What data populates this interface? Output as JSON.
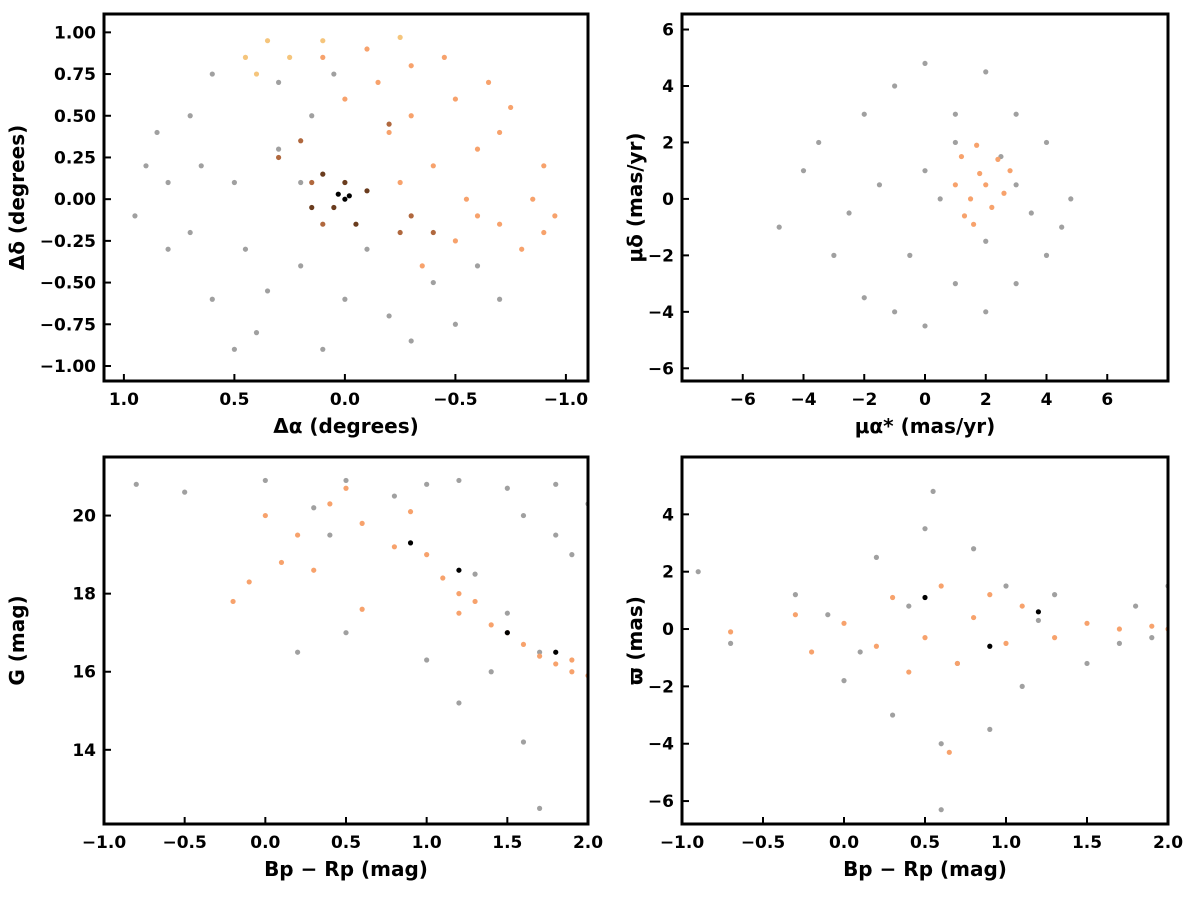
{
  "chart_data": [
    {
      "type": "scatter",
      "xlabel": "Δα (degrees)",
      "ylabel": "Δδ (degrees)",
      "xlim": [
        1.09,
        -1.1
      ],
      "ylim": [
        -1.09,
        1.11
      ],
      "xticks": [
        {
          "value": 1.0,
          "label": "1.0"
        },
        {
          "value": 0.5,
          "label": "0.5"
        },
        {
          "value": 0,
          "label": "0.0"
        },
        {
          "value": -0.5,
          "label": "−0.5"
        },
        {
          "value": -1.0,
          "label": "−1.0"
        }
      ],
      "yticks": [
        {
          "value": -1.0,
          "label": "−1.00"
        },
        {
          "value": -0.75,
          "label": "−0.75"
        },
        {
          "value": -0.5,
          "label": "−0.50"
        },
        {
          "value": -0.25,
          "label": "−0.25"
        },
        {
          "value": 0,
          "label": "0.00"
        },
        {
          "value": 0.25,
          "label": "0.25"
        },
        {
          "value": 0.5,
          "label": "0.50"
        },
        {
          "value": 0.75,
          "label": "0.75"
        },
        {
          "value": 1.0,
          "label": "1.00"
        }
      ],
      "series": [
        {
          "color": "#a0a0a0",
          "x": [
            0.9,
            0.8,
            0.7,
            0.6,
            0.5,
            0.4,
            0.3,
            0.2,
            0.1,
            0.0,
            -0.2,
            -0.4,
            -0.6,
            -0.7,
            0.95,
            0.85,
            0.6,
            0.45,
            0.3,
            0.15,
            -0.1,
            -0.3,
            0.7,
            0.5,
            0.2,
            -0.5,
            0.35,
            0.8,
            0.65,
            0.05
          ],
          "values": [
            0.2,
            -0.3,
            0.5,
            -0.6,
            0.1,
            -0.8,
            0.7,
            -0.4,
            -0.9,
            -0.6,
            -0.7,
            -0.5,
            -0.4,
            -0.6,
            -0.1,
            0.4,
            0.75,
            -0.3,
            0.3,
            0.5,
            -0.3,
            -0.85,
            -0.2,
            -0.9,
            0.1,
            -0.75,
            -0.55,
            0.1,
            0.2,
            0.75
          ]
        },
        {
          "color": "#f7a26c",
          "x": [
            -0.1,
            -0.3,
            -0.5,
            -0.7,
            -0.9,
            -0.95,
            -0.8,
            -0.6,
            -0.4,
            -0.2,
            0.0,
            -0.3,
            -0.6,
            -0.85,
            -0.5,
            -0.15,
            -0.45,
            -0.75,
            -0.25,
            -0.7,
            0.1,
            -0.35,
            -0.55,
            -0.9,
            -0.65
          ],
          "values": [
            0.9,
            0.8,
            0.6,
            0.4,
            0.2,
            -0.1,
            -0.3,
            -0.1,
            0.2,
            0.4,
            0.6,
            0.5,
            0.3,
            0.0,
            -0.25,
            0.7,
            0.85,
            0.55,
            0.1,
            -0.15,
            0.85,
            -0.4,
            0.0,
            -0.2,
            0.7
          ]
        },
        {
          "color": "#f5c57c",
          "x": [
            0.45,
            0.35,
            0.25,
            0.1,
            -0.25,
            0.4
          ],
          "values": [
            0.85,
            0.95,
            0.85,
            0.95,
            0.97,
            0.75
          ]
        },
        {
          "color": "#b0683e",
          "x": [
            0.3,
            0.2,
            -0.3,
            -0.25,
            -0.4,
            0.1,
            0.15,
            -0.2
          ],
          "values": [
            0.25,
            0.35,
            -0.1,
            -0.2,
            -0.2,
            -0.15,
            0.1,
            0.45
          ]
        },
        {
          "color": "#6a3c1e",
          "x": [
            0.1,
            0.05,
            -0.1,
            0.15,
            -0.05,
            0.0
          ],
          "values": [
            0.15,
            -0.05,
            0.05,
            -0.05,
            -0.15,
            0.1
          ]
        },
        {
          "color": "#000000",
          "x": [
            0.0,
            0.03,
            -0.02
          ],
          "values": [
            0.0,
            0.03,
            0.02
          ]
        }
      ]
    },
    {
      "type": "scatter",
      "xlabel": "μα* (mas/yr)",
      "ylabel": "μδ (mas/yr)",
      "xlim": [
        -8,
        8
      ],
      "ylim": [
        -6.45,
        6.55
      ],
      "xticks": [
        {
          "value": -6,
          "label": "−6"
        },
        {
          "value": -4,
          "label": "−4"
        },
        {
          "value": -2,
          "label": "−2"
        },
        0,
        2,
        4,
        6
      ],
      "yticks": [
        {
          "value": -6,
          "label": "−6"
        },
        {
          "value": -4,
          "label": "−4"
        },
        {
          "value": -2,
          "label": "−2"
        },
        0,
        2,
        4,
        6
      ],
      "series": [
        {
          "color": "#a0a0a0",
          "x": [
            -4,
            -3,
            -2,
            -2,
            -1,
            -1,
            0,
            0,
            1,
            1,
            2,
            2,
            3,
            3,
            4,
            4,
            4.8,
            -4.8,
            -3.5,
            0.5,
            2.5,
            3.5,
            -1.5,
            1,
            -0.5,
            3,
            -2.5,
            4.5,
            0,
            2
          ],
          "values": [
            1,
            -2,
            3,
            -3.5,
            4,
            -4,
            4.8,
            -4.5,
            3,
            -3,
            4.5,
            -4,
            3,
            -3,
            2,
            -2,
            0,
            -1,
            2,
            0,
            1.5,
            -0.5,
            0.5,
            2,
            -2,
            0.5,
            -0.5,
            -1,
            1,
            -1.5
          ]
        },
        {
          "color": "#f7a26c",
          "x": [
            1.8,
            1.2,
            2.4,
            1.0,
            2.6,
            1.5,
            2.2,
            1.7,
            1.3,
            2.8,
            2,
            1.6
          ],
          "values": [
            0.9,
            1.5,
            1.4,
            0.5,
            0.2,
            0,
            -0.3,
            1.9,
            -0.6,
            1,
            0.5,
            -0.9
          ]
        }
      ]
    },
    {
      "type": "scatter",
      "xlabel": "Bp − Rp (mag)",
      "ylabel": "G (mag)",
      "xlim": [
        -1,
        2
      ],
      "ylim": [
        12.1,
        21.5
      ],
      "xticks": [
        {
          "value": -1.0,
          "label": "−1.0"
        },
        {
          "value": -0.5,
          "label": "−0.5"
        },
        {
          "value": 0,
          "label": "0.0"
        },
        0.5,
        {
          "value": 1.0,
          "label": "1.0"
        },
        1.5,
        {
          "value": 2.0,
          "label": "2.0"
        }
      ],
      "yticks": [
        14,
        16,
        18,
        20
      ],
      "series": [
        {
          "color": "#a0a0a0",
          "x": [
            -0.8,
            -0.5,
            0,
            0.3,
            0.5,
            0.8,
            1.0,
            1.2,
            1.5,
            1.8,
            2.0,
            1.8,
            1.9,
            1.6,
            1.3,
            1.5,
            1.7,
            1.4,
            1.2,
            1.6,
            1.7,
            0.5,
            0.2,
            1,
            0.4
          ],
          "values": [
            20.8,
            20.6,
            20.9,
            20.2,
            20.9,
            20.5,
            20.8,
            20.9,
            20.7,
            20.8,
            20.3,
            19.5,
            19,
            20,
            18.5,
            17.5,
            16.5,
            16,
            15.2,
            14.2,
            12.5,
            17,
            16.5,
            16.3,
            19.5
          ]
        },
        {
          "color": "#f7a26c",
          "x": [
            0,
            0.2,
            0.4,
            0.6,
            0.1,
            -0.1,
            0.3,
            0.8,
            1.0,
            1.1,
            1.2,
            1.3,
            1.4,
            1.5,
            1.6,
            1.7,
            1.8,
            1.9,
            2.0,
            0.5,
            0.9,
            1.2,
            0.6,
            -0.2,
            1.9
          ],
          "values": [
            20,
            19.5,
            20.3,
            19.8,
            18.8,
            18.3,
            18.6,
            19.2,
            19,
            18.4,
            18,
            17.8,
            17.2,
            17,
            16.7,
            16.4,
            16.2,
            16,
            15.9,
            20.7,
            20.1,
            17.5,
            17.6,
            17.8,
            16.3
          ]
        },
        {
          "color": "#000000",
          "x": [
            0.9,
            1.2,
            1.5,
            1.8
          ],
          "values": [
            19.3,
            18.6,
            17.0,
            16.5
          ]
        }
      ]
    },
    {
      "type": "scatter",
      "xlabel": "Bp − Rp (mag)",
      "ylabel": "ϖ (mas)",
      "xlim": [
        -1,
        2
      ],
      "ylim": [
        -6.8,
        6.0
      ],
      "xticks": [
        {
          "value": -1.0,
          "label": "−1.0"
        },
        {
          "value": -0.5,
          "label": "−0.5"
        },
        {
          "value": 0,
          "label": "0.0"
        },
        0.5,
        {
          "value": 1.0,
          "label": "1.0"
        },
        1.5,
        {
          "value": 2.0,
          "label": "2.0"
        }
      ],
      "yticks": [
        {
          "value": -6,
          "label": "−6"
        },
        {
          "value": -4,
          "label": "−4"
        },
        {
          "value": -2,
          "label": "−2"
        },
        0,
        2,
        4
      ],
      "series": [
        {
          "color": "#a0a0a0",
          "x": [
            -0.9,
            -0.7,
            -0.3,
            0,
            0.2,
            0.3,
            0.5,
            0.6,
            0.8,
            0.9,
            1.0,
            1.1,
            1.3,
            1.5,
            1.8,
            2.0,
            1.7,
            0.4,
            0.7,
            1.2,
            -0.1,
            0.1,
            1.9,
            0.6,
            0.55
          ],
          "values": [
            2,
            -0.5,
            1.2,
            -1.8,
            2.5,
            -3,
            3.5,
            -4,
            2.8,
            -3.5,
            1.5,
            -2,
            1.2,
            -1.2,
            0.8,
            1.5,
            -0.5,
            0.8,
            -1.2,
            0.3,
            0.5,
            -0.8,
            -0.3,
            -6.3,
            4.8
          ]
        },
        {
          "color": "#f7a26c",
          "x": [
            -0.7,
            -0.3,
            0,
            0.2,
            0.3,
            0.5,
            0.6,
            0.7,
            0.8,
            1.0,
            1.1,
            1.3,
            1.5,
            1.7,
            1.9,
            2.0,
            0.4,
            0.9,
            -0.2,
            0.65
          ],
          "values": [
            -0.1,
            0.5,
            0.2,
            -0.6,
            1.1,
            -0.3,
            1.5,
            -1.2,
            0.4,
            -0.5,
            0.8,
            -0.3,
            0.2,
            0,
            0.1,
            0,
            -1.5,
            1.2,
            -0.8,
            -4.3
          ]
        },
        {
          "color": "#000000",
          "x": [
            0.5,
            0.9,
            1.2
          ],
          "values": [
            1.1,
            -0.6,
            0.6
          ]
        }
      ]
    }
  ]
}
